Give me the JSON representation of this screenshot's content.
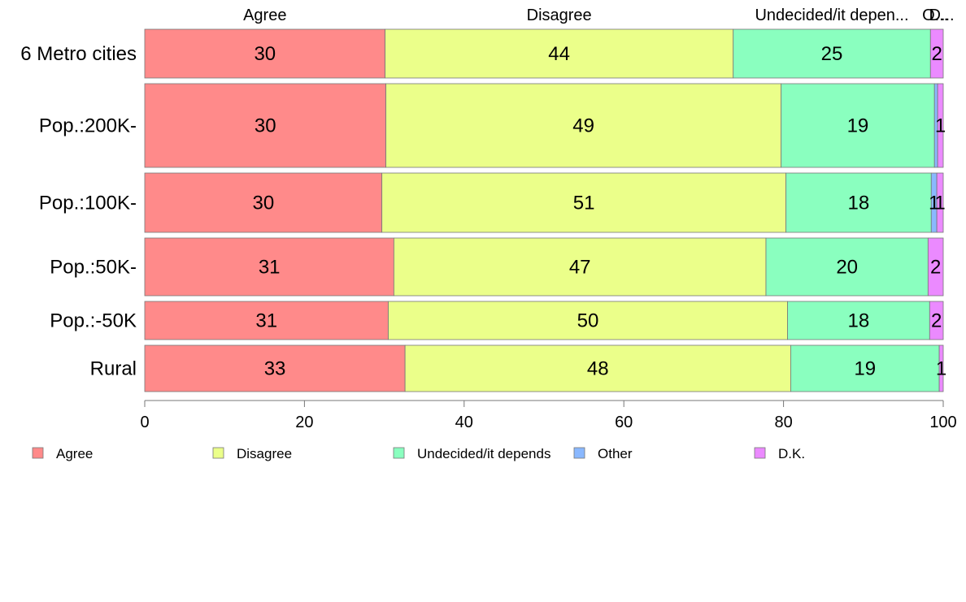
{
  "chart_data": {
    "type": "bar",
    "orientation": "horizontal",
    "stacked": true,
    "categories": [
      "6 Metro cities",
      "Pop.:200K-",
      "Pop.:100K-",
      "Pop.:50K-",
      "Pop.:-50K",
      "Rural"
    ],
    "series": [
      {
        "name": "Agree",
        "color": "#ff8a8a",
        "values": [
          30.1,
          30.2,
          29.7,
          31.2,
          30.5,
          32.6
        ],
        "labels": [
          "30",
          "30",
          "30",
          "31",
          "31",
          "33"
        ]
      },
      {
        "name": "Disagree",
        "color": "#ebff8a",
        "values": [
          43.6,
          49.5,
          50.6,
          46.6,
          50.0,
          48.3
        ],
        "labels": [
          "44",
          "49",
          "51",
          "47",
          "50",
          "48"
        ]
      },
      {
        "name": "Undecided/it depends",
        "color": "#8affbf",
        "values": [
          24.7,
          19.2,
          18.2,
          20.3,
          17.8,
          18.6
        ],
        "labels": [
          "25",
          "19",
          "18",
          "20",
          "18",
          "19"
        ]
      },
      {
        "name": "Other",
        "color": "#8ab8ff",
        "values": [
          0.0,
          0.4,
          0.7,
          0.0,
          0.0,
          0.0
        ],
        "labels": [
          "",
          "",
          "1",
          "",
          "",
          ""
        ]
      },
      {
        "name": "D.K.",
        "color": "#eb8aff",
        "values": [
          1.6,
          0.7,
          0.8,
          1.9,
          1.7,
          0.5
        ],
        "labels": [
          "2",
          "1",
          "1",
          "2",
          "2",
          "1"
        ]
      }
    ],
    "top_labels": [
      "Agree",
      "Disagree",
      "Undecided/it depen...",
      "O...",
      "D..."
    ],
    "xlim": [
      0,
      100
    ],
    "x_ticks": [
      "0",
      "20",
      "40",
      "60",
      "80",
      "100"
    ],
    "legend_position": "bottom",
    "grid": false
  }
}
